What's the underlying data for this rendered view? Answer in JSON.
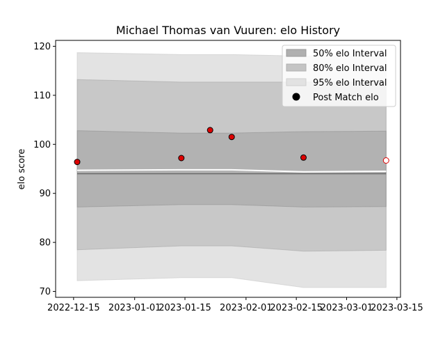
{
  "chart_data": {
    "type": "line",
    "title": "Michael Thomas van Vuuren: elo History",
    "ylabel": "elo score",
    "xlabel": "",
    "xlim": [
      "2022-12-10",
      "2023-03-16"
    ],
    "ylim": [
      68.8,
      121.2
    ],
    "x_ticks": [
      "2022-12-15",
      "2023-01-01",
      "2023-01-15",
      "2023-02-01",
      "2023-02-15",
      "2023-03-01",
      "2023-03-15"
    ],
    "y_ticks": [
      70,
      80,
      90,
      100,
      110,
      120
    ],
    "grid": false,
    "legend_position": "top-right",
    "colors": {
      "band50": "#808080",
      "band80": "#a0a0a0",
      "band95": "#c8c8c8",
      "points": "#dd0000",
      "median": "#555555",
      "mean": "#ffffff"
    },
    "legend": [
      {
        "label": "50% elo Interval",
        "kind": "band50"
      },
      {
        "label": "80% elo Interval",
        "kind": "band80"
      },
      {
        "label": "95% elo Interval",
        "kind": "band95"
      },
      {
        "label": "Post Match elo",
        "kind": "point"
      }
    ],
    "band_x": [
      "2022-12-16",
      "2023-01-14",
      "2023-01-22",
      "2023-01-28",
      "2023-02-17",
      "2023-03-12"
    ],
    "bands": {
      "p95": {
        "lower": [
          72.2,
          72.8,
          72.8,
          72.8,
          70.8,
          70.8
        ],
        "upper": [
          118.7,
          118.3,
          118.3,
          118.3,
          118.0,
          118.0
        ]
      },
      "p80": {
        "lower": [
          78.5,
          79.3,
          79.3,
          79.3,
          78.2,
          78.4
        ],
        "upper": [
          113.2,
          112.7,
          112.7,
          112.7,
          112.7,
          112.7
        ]
      },
      "p50": {
        "lower": [
          87.2,
          87.7,
          87.7,
          87.7,
          87.2,
          87.3
        ],
        "upper": [
          102.8,
          102.3,
          102.3,
          102.3,
          102.6,
          102.7
        ]
      }
    },
    "median_line": [
      94.0,
      94.0,
      94.0,
      94.0,
      94.0,
      94.0
    ],
    "mean_line": [
      94.7,
      94.8,
      94.8,
      94.8,
      94.4,
      94.5
    ],
    "points": [
      {
        "x": "2022-12-16",
        "y": 96.4,
        "filled": true
      },
      {
        "x": "2023-01-14",
        "y": 97.2,
        "filled": true
      },
      {
        "x": "2023-01-22",
        "y": 102.9,
        "filled": true
      },
      {
        "x": "2023-01-28",
        "y": 101.5,
        "filled": true
      },
      {
        "x": "2023-02-17",
        "y": 97.3,
        "filled": true
      },
      {
        "x": "2023-03-12",
        "y": 96.7,
        "filled": false
      }
    ]
  }
}
